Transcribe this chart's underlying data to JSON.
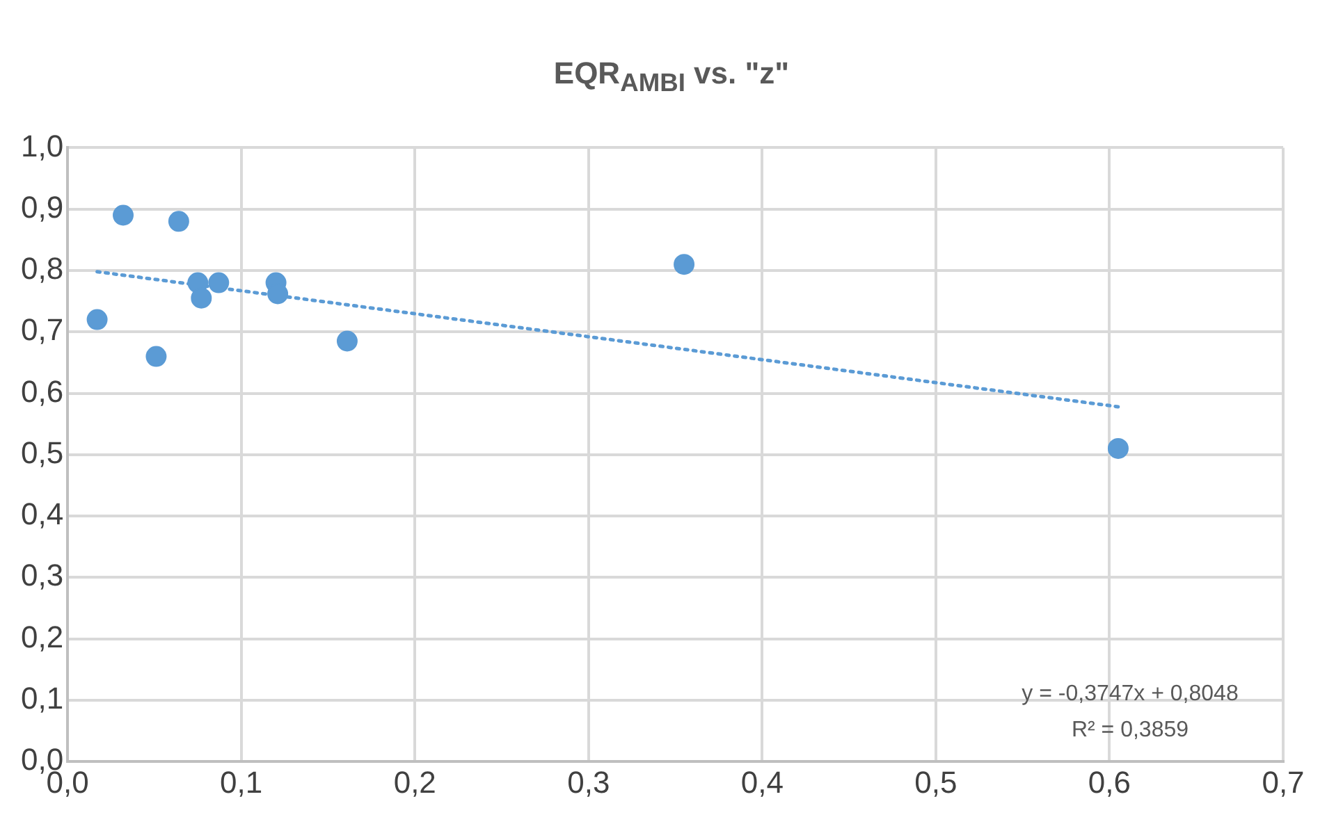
{
  "chart_data": {
    "type": "scatter",
    "title": "EQR$_{AMBI}$ vs. \"z\"",
    "xlim": [
      0,
      0.7
    ],
    "ylim": [
      0,
      1
    ],
    "xticks": [
      {
        "value": 0,
        "label": "0,0"
      },
      {
        "value": 0.1,
        "label": "0,1"
      },
      {
        "value": 0.2,
        "label": "0,2"
      },
      {
        "value": 0.3,
        "label": "0,3"
      },
      {
        "value": 0.4,
        "label": "0,4"
      },
      {
        "value": 0.5,
        "label": "0,5"
      },
      {
        "value": 0.6,
        "label": "0,6"
      },
      {
        "value": 0.7,
        "label": "0,7"
      }
    ],
    "yticks": [
      {
        "value": 0,
        "label": "0,0"
      },
      {
        "value": 0.1,
        "label": "0,1"
      },
      {
        "value": 0.2,
        "label": "0,2"
      },
      {
        "value": 0.3,
        "label": "0,3"
      },
      {
        "value": 0.4,
        "label": "0,4"
      },
      {
        "value": 0.5,
        "label": "0,5"
      },
      {
        "value": 0.6,
        "label": "0,6"
      },
      {
        "value": 0.7,
        "label": "0,7"
      },
      {
        "value": 0.8,
        "label": "0,8"
      },
      {
        "value": 0.9,
        "label": "0,9"
      },
      {
        "value": 1,
        "label": "1,0"
      }
    ],
    "grid": true,
    "legend": false,
    "marker": "circle",
    "series": [
      {
        "color": "#5b9bd5",
        "x": [
          0.017,
          0.032,
          0.064,
          0.051,
          0.075,
          0.077,
          0.087,
          0.12,
          0.121,
          0.161,
          0.355,
          0.605
        ],
        "values": [
          0.72,
          0.89,
          0.88,
          0.66,
          0.78,
          0.755,
          0.78,
          0.78,
          0.762,
          0.685,
          0.81,
          0.51
        ]
      },
      {
        "type": "line",
        "color": "#5b9bd5",
        "line_style": "dotted",
        "marker": "none",
        "x": [
          0.017,
          0.605
        ],
        "values": [
          0.798,
          0.578
        ]
      }
    ],
    "annotations": [
      "y = -0,3747x + 0,8048",
      "R² = 0,3859"
    ]
  }
}
